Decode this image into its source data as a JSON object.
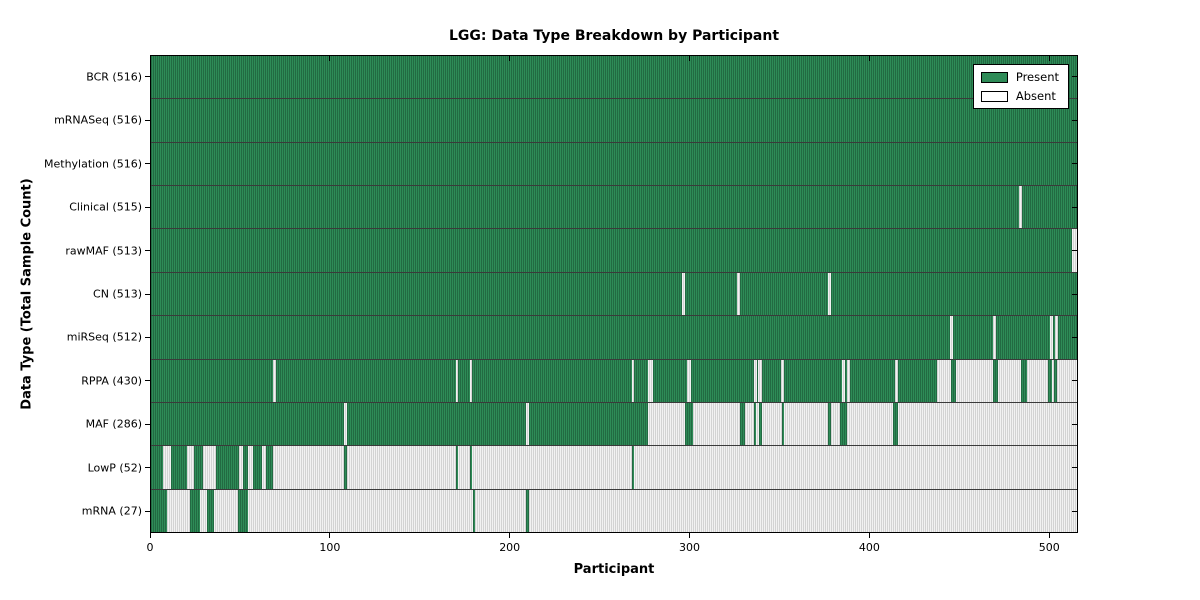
{
  "chart_data": {
    "type": "heatmap",
    "title": "LGG: Data Type Breakdown by Participant",
    "xlabel": "Participant",
    "ylabel": "Data Type (Total Sample Count)",
    "xlim": [
      0,
      516
    ],
    "xticks": [
      0,
      100,
      200,
      300,
      400,
      500
    ],
    "legend": {
      "position": "upper right",
      "entries": [
        {
          "label": "Present",
          "color": "#2e8b57"
        },
        {
          "label": "Absent",
          "color": "#ffffff"
        }
      ]
    },
    "colors": {
      "present": "#2e8b57",
      "absent": "#ffffff",
      "row_divider": "#3a3a3a"
    },
    "grid": false,
    "rows": [
      {
        "label": "BCR (516)",
        "data_type": "BCR",
        "total": 516,
        "present_ranges": [
          [
            0,
            516
          ]
        ]
      },
      {
        "label": "mRNASeq (516)",
        "data_type": "mRNASeq",
        "total": 516,
        "present_ranges": [
          [
            0,
            516
          ]
        ]
      },
      {
        "label": "Methylation (516)",
        "data_type": "Methylation",
        "total": 516,
        "present_ranges": [
          [
            0,
            516
          ]
        ]
      },
      {
        "label": "Clinical (515)",
        "data_type": "Clinical",
        "total": 515,
        "present_ranges": [
          [
            0,
            483.5
          ],
          [
            485.5,
            516
          ]
        ]
      },
      {
        "label": "rawMAF (513)",
        "data_type": "rawMAF",
        "total": 513,
        "present_ranges": [
          [
            0,
            513
          ]
        ]
      },
      {
        "label": "CN (513)",
        "data_type": "CN",
        "total": 513,
        "present_ranges": [
          [
            0,
            296
          ],
          [
            297.7,
            326.6
          ],
          [
            328.2,
            377.3
          ],
          [
            379,
            516
          ]
        ]
      },
      {
        "label": "miRSeq (512)",
        "data_type": "miRSeq",
        "total": 512,
        "present_ranges": [
          [
            0,
            445.2
          ],
          [
            446.8,
            469.2
          ],
          [
            470.8,
            501.2
          ],
          [
            502.8,
            503.8
          ],
          [
            505.4,
            516
          ]
        ]
      },
      {
        "label": "RPPA (430)",
        "data_type": "RPPA",
        "total": 430,
        "present_ranges": [
          [
            0,
            67.8
          ],
          [
            69.6,
            169.8
          ],
          [
            171.3,
            177.6
          ],
          [
            179.1,
            267.8
          ],
          [
            269.3,
            276.8
          ],
          [
            279.8,
            298.8
          ],
          [
            300.8,
            335.8
          ],
          [
            337.6,
            338.4
          ],
          [
            340.4,
            351.2
          ],
          [
            352.8,
            385.2
          ],
          [
            386.8,
            387.8
          ],
          [
            389.4,
            414.6
          ],
          [
            416.4,
            437.8
          ],
          [
            445.8,
            448.4
          ],
          [
            469.4,
            472
          ],
          [
            485,
            488
          ],
          [
            499.8,
            501.8
          ],
          [
            503,
            504.6
          ]
        ]
      },
      {
        "label": "MAF (286)",
        "data_type": "MAF",
        "total": 286,
        "present_ranges": [
          [
            0,
            107.6
          ],
          [
            109.2,
            208.8
          ],
          [
            210.4,
            277
          ],
          [
            297.8,
            302
          ],
          [
            328,
            331.2
          ],
          [
            335.8,
            337.4
          ],
          [
            338.6,
            340.2
          ],
          [
            351.4,
            352.8
          ],
          [
            377.4,
            379
          ],
          [
            384,
            387.8
          ],
          [
            413.4,
            416.4
          ]
        ]
      },
      {
        "label": "LowP (52)",
        "data_type": "LowP",
        "total": 52,
        "present_ranges": [
          [
            0,
            6.5
          ],
          [
            11,
            20
          ],
          [
            24,
            29
          ],
          [
            36,
            49
          ],
          [
            51,
            54
          ],
          [
            57,
            62
          ],
          [
            64,
            68
          ],
          [
            107.8,
            109.3
          ],
          [
            169.8,
            171.3
          ],
          [
            177.6,
            179.1
          ],
          [
            267.8,
            269.3
          ]
        ]
      },
      {
        "label": "mRNA (27)",
        "data_type": "mRNA",
        "total": 27,
        "present_ranges": [
          [
            0,
            9
          ],
          [
            21.5,
            27.5
          ],
          [
            31,
            35
          ],
          [
            48.5,
            54
          ],
          [
            179.6,
            180.8
          ],
          [
            209,
            210.5
          ]
        ]
      }
    ]
  }
}
